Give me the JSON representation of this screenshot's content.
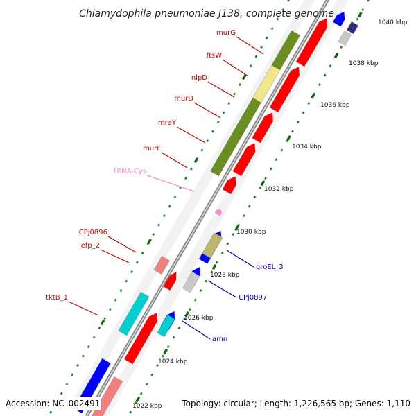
{
  "title": "Chlamydophila pneumoniae J138, complete genome",
  "footer": {
    "accession": "Accession: NC_002491",
    "topology": "Topology: circular; Length: 1,226,565 bp; Genes: 1,110"
  },
  "colors": {
    "backbone": "#8a8a8a",
    "tick": "#1f8a1f",
    "gene_red": "#ff0000",
    "gene_olive": "#6b8e23",
    "gene_khaki": "#f0e68c",
    "gene_darkkhaki": "#bdb76b",
    "gene_blue": "#0000ff",
    "gene_cyan": "#00ced1",
    "gene_pink": "#f08080",
    "gene_grey": "#c8c8c8",
    "gene_navy": "#2f2f7f",
    "label_red": "#cc0000",
    "label_blue": "#0000cc",
    "label_pink": "#ff88cc"
  },
  "scale_labels": [
    "1022 kbp",
    "1024 kbp",
    "1026 kbp",
    "1028 kbp",
    "1030 kbp",
    "1032 kbp",
    "1034 kbp",
    "1036 kbp",
    "1038 kbp",
    "1040 kbp"
  ],
  "labels_left": [
    {
      "name": "murG",
      "color": "label_red"
    },
    {
      "name": "ftsW",
      "color": "label_red"
    },
    {
      "name": "nlpD",
      "color": "label_red"
    },
    {
      "name": "murD",
      "color": "label_red"
    },
    {
      "name": "mraY",
      "color": "label_red"
    },
    {
      "name": "murF",
      "color": "label_red"
    },
    {
      "name": "tRNA-Cys",
      "color": "label_pink"
    },
    {
      "name": "CPj0896",
      "color": "label_red"
    },
    {
      "name": "efp_2",
      "color": "label_red"
    },
    {
      "name": "tktB_1",
      "color": "label_red"
    }
  ],
  "labels_right": [
    {
      "name": "groEL_3",
      "color": "label_blue"
    },
    {
      "name": "CPj0897",
      "color": "label_blue"
    },
    {
      "name": "amn",
      "color": "label_blue"
    }
  ]
}
